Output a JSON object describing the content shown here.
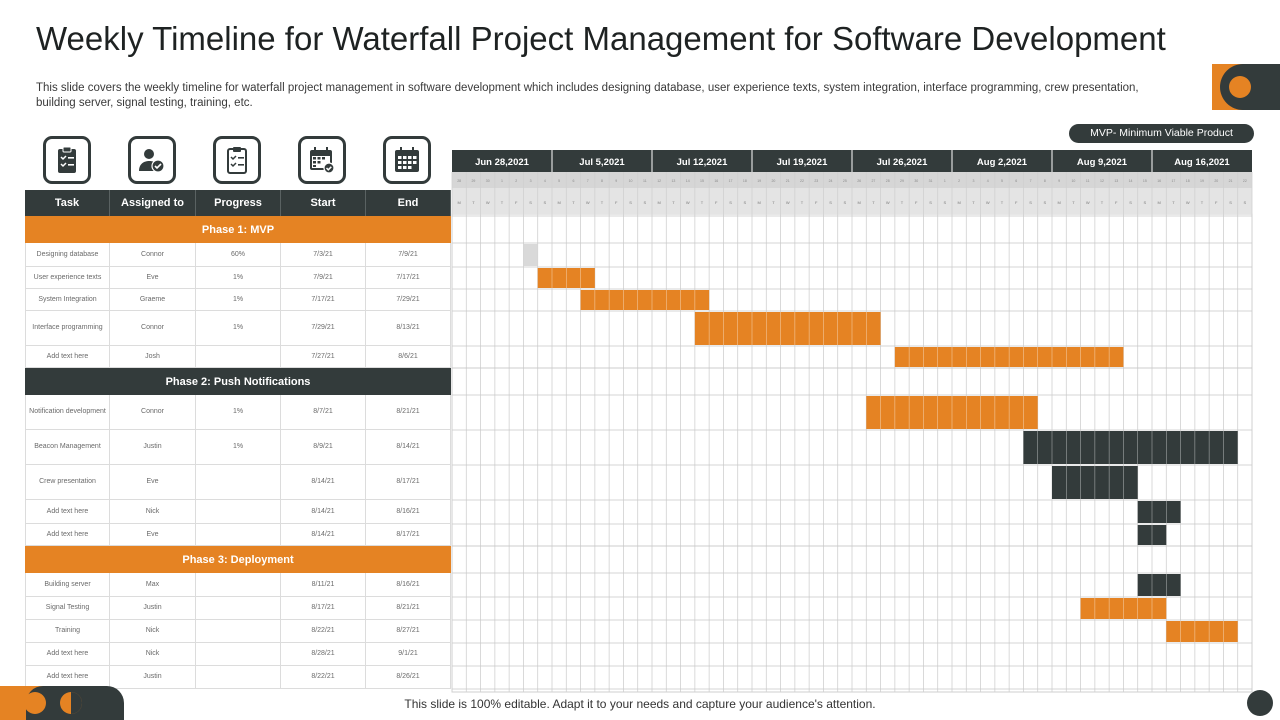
{
  "title": "Weekly Timeline for Waterfall Project Management for Software Development",
  "description": "This slide covers the weekly timeline for waterfall project management in software development which includes designing database, user experience texts, system integration, interface programming, crew presentation, building server, signal testing, training, etc.",
  "mvp_badge": "MVP- Minimum  Viable Product",
  "footer_note": "This slide is 100% editable. Adapt it to your needs and capture your audience's attention.",
  "icons": [
    "clipboard-checklist-icon",
    "user-check-icon",
    "progress-checklist-icon",
    "calendar-check-icon",
    "calendar-grid-icon"
  ],
  "colors": {
    "orange": "#e58323",
    "dark": "#333b3b",
    "gray": "#d9d9d9"
  },
  "table": {
    "headers": [
      "Task",
      "Assigned to",
      "Progress",
      "Start",
      "End"
    ],
    "phases": [
      {
        "name": "Phase 1: MVP",
        "style": "orange",
        "rows": [
          {
            "task": "Designing database",
            "assigned": "Connor",
            "progress": "60%",
            "start": "7/3/21",
            "end": "7/9/21"
          },
          {
            "task": "User experience texts",
            "assigned": "Eve",
            "progress": "1%",
            "start": "7/9/21",
            "end": "7/17/21"
          },
          {
            "task": "System Integration",
            "assigned": "Graeme",
            "progress": "1%",
            "start": "7/17/21",
            "end": "7/29/21"
          },
          {
            "task": "Interface programming",
            "assigned": "Connor",
            "progress": "1%",
            "start": "7/29/21",
            "end": "8/13/21"
          },
          {
            "task": "Add text here",
            "assigned": "Josh",
            "progress": "",
            "start": "7/27/21",
            "end": "8/6/21"
          }
        ]
      },
      {
        "name": "Phase 2: Push Notifications",
        "style": "dark",
        "rows": [
          {
            "task": "Notification development",
            "assigned": "Connor",
            "progress": "1%",
            "start": "8/7/21",
            "end": "8/21/21"
          },
          {
            "task": "Beacon Management",
            "assigned": "Justin",
            "progress": "1%",
            "start": "8/9/21",
            "end": "8/14/21"
          },
          {
            "task": "Crew presentation",
            "assigned": "Eve",
            "progress": "",
            "start": "8/14/21",
            "end": "8/17/21"
          },
          {
            "task": "Add text here",
            "assigned": "Nick",
            "progress": "",
            "start": "8/14/21",
            "end": "8/16/21"
          },
          {
            "task": "Add text here",
            "assigned": "Eve",
            "progress": "",
            "start": "8/14/21",
            "end": "8/17/21"
          }
        ]
      },
      {
        "name": "Phase 3: Deployment",
        "style": "orange",
        "rows": [
          {
            "task": "Building server",
            "assigned": "Max",
            "progress": "",
            "start": "8/11/21",
            "end": "8/16/21"
          },
          {
            "task": "Signal Testing",
            "assigned": "Justin",
            "progress": "",
            "start": "8/17/21",
            "end": "8/21/21"
          },
          {
            "task": "Training",
            "assigned": "Nick",
            "progress": "",
            "start": "8/22/21",
            "end": "8/27/21"
          },
          {
            "task": "Add text here",
            "assigned": "Nick",
            "progress": "",
            "start": "8/28/21",
            "end": "9/1/21"
          },
          {
            "task": "Add text here",
            "assigned": "Justin",
            "progress": "",
            "start": "8/22/21",
            "end": "8/26/21"
          }
        ]
      }
    ]
  },
  "gantt": {
    "weeks": [
      "Jun 28,2021",
      "Jul 5,2021",
      "Jul 12,2021",
      "Jul 19,2021",
      "Jul 26,2021",
      "Aug  2,2021",
      "Aug  9,2021",
      "Aug  16,2021"
    ],
    "day_numbers": [
      "28",
      "29",
      "30",
      "1",
      "2",
      "3",
      "4",
      "5",
      "6",
      "7",
      "8",
      "9",
      "10",
      "11",
      "12",
      "13",
      "14",
      "15",
      "16",
      "17",
      "18",
      "19",
      "20",
      "21",
      "22",
      "23",
      "24",
      "25",
      "26",
      "27",
      "28",
      "29",
      "30",
      "31",
      "1",
      "2",
      "3",
      "4",
      "5",
      "6",
      "7",
      "8",
      "9",
      "10",
      "11",
      "12",
      "13",
      "14",
      "15",
      "16",
      "17",
      "18",
      "19",
      "20",
      "21",
      "22"
    ],
    "day_letters": [
      "M",
      "T",
      "W",
      "T",
      "F",
      "S",
      "S"
    ],
    "bars": [
      {
        "start_day": 5,
        "end_day": 5,
        "color": "gray"
      },
      {
        "start_day": 6,
        "end_day": 9,
        "color": "orange"
      },
      {
        "start_day": 9,
        "end_day": 17,
        "color": "orange"
      },
      {
        "start_day": 17,
        "end_day": 29,
        "color": "orange"
      },
      {
        "start_day": 31,
        "end_day": 46,
        "color": "orange"
      },
      {
        "start_day": 29,
        "end_day": 40,
        "color": "orange"
      },
      {
        "start_day": 40,
        "end_day": 54,
        "color": "dark"
      },
      {
        "start_day": 42,
        "end_day": 47,
        "color": "dark"
      },
      {
        "start_day": 48,
        "end_day": 50,
        "color": "dark"
      },
      {
        "start_day": 48,
        "end_day": 49,
        "color": "dark"
      },
      {
        "start_day": 48,
        "end_day": 50,
        "color": "dark"
      },
      {
        "start_day": 44,
        "end_day": 49,
        "color": "orange"
      },
      {
        "start_day": 50,
        "end_day": 54,
        "color": "orange"
      }
    ]
  }
}
